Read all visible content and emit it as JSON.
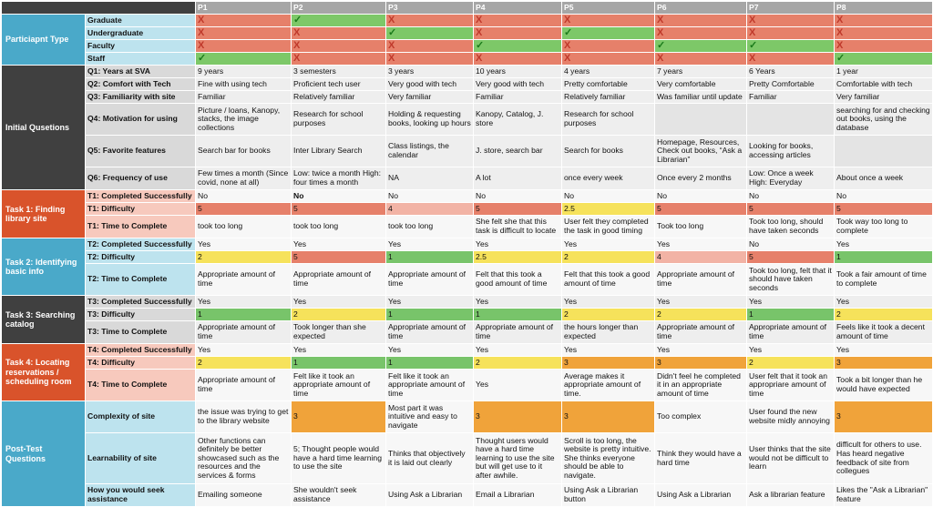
{
  "colors": {
    "header_bg": "#a6a6a6",
    "dark_bg": "#404040",
    "section_blue": "#4aa9c9",
    "section_red": "#d9532b",
    "row_blue": "#bde3ee",
    "row_pink": "#f7c9bd",
    "row_gray": "#d9d9d9",
    "rating_red": "#e6806a",
    "rating_pink": "#f2b3a5",
    "rating_yellow": "#f6e25b",
    "rating_green": "#78c46a",
    "rating_orange": "#f0a33a",
    "bad_cell": "#e6806a",
    "good_cell": "#7dc868"
  },
  "participants": [
    "P1",
    "P2",
    "P3",
    "P4",
    "P5",
    "P6",
    "P7",
    "P8"
  ],
  "sections": [
    {
      "key": "ptype",
      "label": "Particiapnt Type",
      "color": "section_blue",
      "rows": [
        {
          "label": "Graduate",
          "label_bg": "row_blue",
          "kind": "mark",
          "values": [
            "x",
            "check",
            "x",
            "x",
            "x",
            "x",
            "x",
            "x"
          ]
        },
        {
          "label": "Undergraduate",
          "label_bg": "row_blue",
          "kind": "mark",
          "values": [
            "x",
            "x",
            "check",
            "x",
            "check",
            "x",
            "x",
            "x"
          ]
        },
        {
          "label": "Faculty",
          "label_bg": "row_blue",
          "kind": "mark",
          "values": [
            "x",
            "x",
            "x",
            "check",
            "x",
            "check",
            "check",
            "x"
          ]
        },
        {
          "label": "Staff",
          "label_bg": "row_blue",
          "kind": "mark",
          "values": [
            "check",
            "x",
            "x",
            "x",
            "x",
            "x",
            "x",
            "check"
          ]
        }
      ]
    },
    {
      "key": "initial",
      "label": "Initial Qusetions",
      "color": "dark",
      "rows": [
        {
          "label": "Q1: Years at SVA",
          "label_bg": "row_gray",
          "h": 13,
          "values": [
            "9 years",
            "3 semesters",
            "3 years",
            "10 years",
            "4 years",
            "7 years",
            "6 Years",
            "1 year"
          ]
        },
        {
          "label": "Q2: Comfort with Tech",
          "label_bg": "row_gray",
          "h": 13,
          "values": [
            "Fine with using tech",
            "Proficient tech user",
            "Very good with tech",
            "Very good with tech",
            "Pretty comfortable",
            "Very comfortable",
            "Pretty Comfortable",
            "Comfortable with tech"
          ]
        },
        {
          "label": "Q3: Familiarity with site",
          "label_bg": "row_gray",
          "h": 13,
          "values": [
            "Familiar",
            "Relatively familiar",
            "Very familiar",
            "Familiar",
            "Relatively familiar",
            "Was familiar until update",
            "Familiar",
            "Very familiar"
          ]
        },
        {
          "label": "Q4: Motivation for using",
          "label_bg": "row_gray",
          "h": 34,
          "values": [
            "Picture / loans, Kanopy, stacks, the image collections",
            "Research for school purposes",
            "Holding & requesting books, looking up hours",
            "Kanopy, Catalog, J. store",
            "Research for school purposes",
            "",
            "",
            "searching for and checking out books, using the database"
          ]
        },
        {
          "label": "Q5: Favorite features",
          "label_bg": "row_gray",
          "h": 34,
          "values": [
            "Search bar for books",
            "Inter Library Search",
            "Class listings, the calendar",
            "J. store, search bar",
            "Search for books",
            "Homepage, Resources, Check out books, “Ask a Librarian”",
            "Looking for books, accessing articles",
            ""
          ]
        },
        {
          "label": "Q6: Frequency of use",
          "label_bg": "row_gray",
          "h": 24,
          "values": [
            "Few times a month (Since covid, none at all)",
            "Low: twice a month High: four times a month",
            "NA",
            "A lot",
            "once every week",
            "Once every 2 months",
            "Low: Once a week High: Everyday",
            "About once a week"
          ]
        }
      ]
    },
    {
      "key": "task1",
      "label": "Task 1: Finding library site",
      "color": "section_red",
      "rows": [
        {
          "label": "T1: Completed Successfully",
          "label_bg": "row_pink",
          "h": 13,
          "values": [
            "No",
            "No",
            "No",
            "No",
            "No",
            "No",
            "No",
            "No"
          ],
          "bold": [
            false,
            true,
            false,
            false,
            false,
            false,
            false,
            false
          ]
        },
        {
          "label": "T1: Difficulty",
          "label_bg": "row_pink",
          "h": 13,
          "values": [
            "5",
            "5",
            "4",
            "5",
            "2.5",
            "5",
            "5",
            "5"
          ],
          "cell_colors": [
            "rating_red",
            "rating_red",
            "rating_pink",
            "rating_red",
            "rating_yellow",
            "rating_red",
            "rating_red",
            "rating_red"
          ]
        },
        {
          "label": "T1: Time to Complete",
          "label_bg": "row_pink",
          "h": 24,
          "values": [
            "took too long",
            "took too long",
            "took too long",
            "She felt she that this task is difficult to locate",
            "User felt they completed the task in good timing",
            "Took too long",
            "Took too long, should have taken seconds",
            "Took way too long to complete"
          ]
        }
      ]
    },
    {
      "key": "task2",
      "label": "Task 2: Identifying basic info",
      "color": "section_blue",
      "rows": [
        {
          "label": "T2: Completed Successfully",
          "label_bg": "row_blue",
          "h": 13,
          "values": [
            "Yes",
            "Yes",
            "Yes",
            "Yes",
            "Yes",
            "Yes",
            "No",
            "Yes"
          ]
        },
        {
          "label": "T2: Difficulty",
          "label_bg": "row_blue",
          "h": 13,
          "values": [
            "2",
            "5",
            "1",
            "2.5",
            "2",
            "4",
            "5",
            "1"
          ],
          "cell_colors": [
            "rating_yellow",
            "rating_red",
            "rating_green",
            "rating_yellow",
            "rating_yellow",
            "rating_pink",
            "rating_red",
            "rating_green"
          ]
        },
        {
          "label": "T2: Time to Complete",
          "label_bg": "row_blue",
          "h": 34,
          "values": [
            "Appropriate amount of time",
            "Appropriate amount of time",
            "Appropriate amount of time",
            "Felt that this took a good amount of time",
            "Felt that this took a good amount of time",
            "Appropriate amount of time",
            "Took too long, felt that it should have taken seconds",
            "Took a fair amount of time to complete"
          ]
        }
      ]
    },
    {
      "key": "task3",
      "label": "Task 3: Searching catalog",
      "color": "dark",
      "rows": [
        {
          "label": "T3: Completed Successfully",
          "label_bg": "row_gray",
          "h": 13,
          "values": [
            "Yes",
            "Yes",
            "Yes",
            "Yes",
            "Yes",
            "Yes",
            "Yes",
            "Yes"
          ]
        },
        {
          "label": "T3: Difficulty",
          "label_bg": "row_gray",
          "h": 13,
          "values": [
            "1",
            "2",
            "1",
            "1",
            "2",
            "2",
            "1",
            "2"
          ],
          "cell_colors": [
            "rating_green",
            "rating_yellow",
            "rating_green",
            "rating_green",
            "rating_yellow",
            "rating_yellow",
            "rating_green",
            "rating_yellow"
          ]
        },
        {
          "label": "T3: Time to Complete",
          "label_bg": "row_gray",
          "h": 24,
          "values": [
            "Appropriate amount of time",
            "Took longer than she expected",
            "Appropriate amount of time",
            "Appropriate amount of time",
            "the hours longer than expected",
            "Appropriate amount of time",
            "Appropriate amount of time",
            "Feels like it took a decent amount of time"
          ]
        }
      ]
    },
    {
      "key": "task4",
      "label": "Task 4: Locating reservations / scheduling room",
      "color": "section_red",
      "rows": [
        {
          "label": "T4: Completed Successfully",
          "label_bg": "row_pink",
          "h": 13,
          "values": [
            "Yes",
            "Yes",
            "Yes",
            "Yes",
            "Yes",
            "Yes",
            "Yes",
            "Yes"
          ]
        },
        {
          "label": "T4: Difficulty",
          "label_bg": "row_pink",
          "h": 13,
          "values": [
            "2",
            "1",
            "1",
            "2",
            "3",
            "3",
            "2",
            "3"
          ],
          "cell_colors": [
            "rating_yellow",
            "rating_green",
            "rating_green",
            "rating_yellow",
            "rating_orange",
            "rating_orange",
            "rating_yellow",
            "rating_orange"
          ]
        },
        {
          "label": "T4: Time to Complete",
          "label_bg": "row_pink",
          "h": 34,
          "values": [
            "Appropriate amount of time",
            "Felt like it took an appropriate amount of time",
            "Felt like it took an appropriate amount of time",
            "Yes",
            "Average makes it appropriate amount of time.",
            "Didn't feel he completed it in an appropriate amount of time",
            "User felt that it took an appropriare amount of time",
            "Took a bit longer than he would have expected"
          ]
        }
      ]
    },
    {
      "key": "post",
      "label": "Post-Test Questions",
      "color": "section_blue",
      "rows": [
        {
          "label": "Complexity of site",
          "label_bg": "row_blue",
          "h": 34,
          "values": [
            "the issue was trying to get to the library website",
            "3",
            "Most part it was intuitive and easy to navigate",
            "3",
            "3",
            "Too complex",
            "User found the new website midly annoying",
            "3"
          ],
          "cell_colors": [
            null,
            "rating_orange",
            null,
            "rating_orange",
            "rating_orange",
            null,
            null,
            "rating_orange"
          ]
        },
        {
          "label": "Learnability of site",
          "label_bg": "row_blue",
          "h": 55,
          "values": [
            "Other functions can definitely be better showcased such as the resources and the services & forms",
            "5; Thought people would have a hard time learning to use the site",
            "Thinks that objectively it is laid out clearly",
            "Thought users would have a hard time learning to use the site but will get use to it after awhile.",
            "Scroll is too long, the website is pretty intuitive. She thinks everyone should be able to navigate.",
            "Think they would have a hard time",
            "User thinks that the site would not be difficult to learn",
            "difficult for others to use. Has heard negative feedback of site from collegues"
          ]
        },
        {
          "label": "How you would seek assistance",
          "label_bg": "row_blue",
          "h": 24,
          "values": [
            "Emailing someone",
            "She wouldn't seek assistance",
            "Using Ask a Librarian",
            "Email a Librarian",
            "Using Ask a Librarian button",
            "Using Ask a Librarian",
            "Ask a librarian feature",
            "Likes the \"Ask a Librarian\" feature"
          ]
        }
      ]
    }
  ],
  "marks": {
    "x": "X",
    "check": "✓"
  }
}
